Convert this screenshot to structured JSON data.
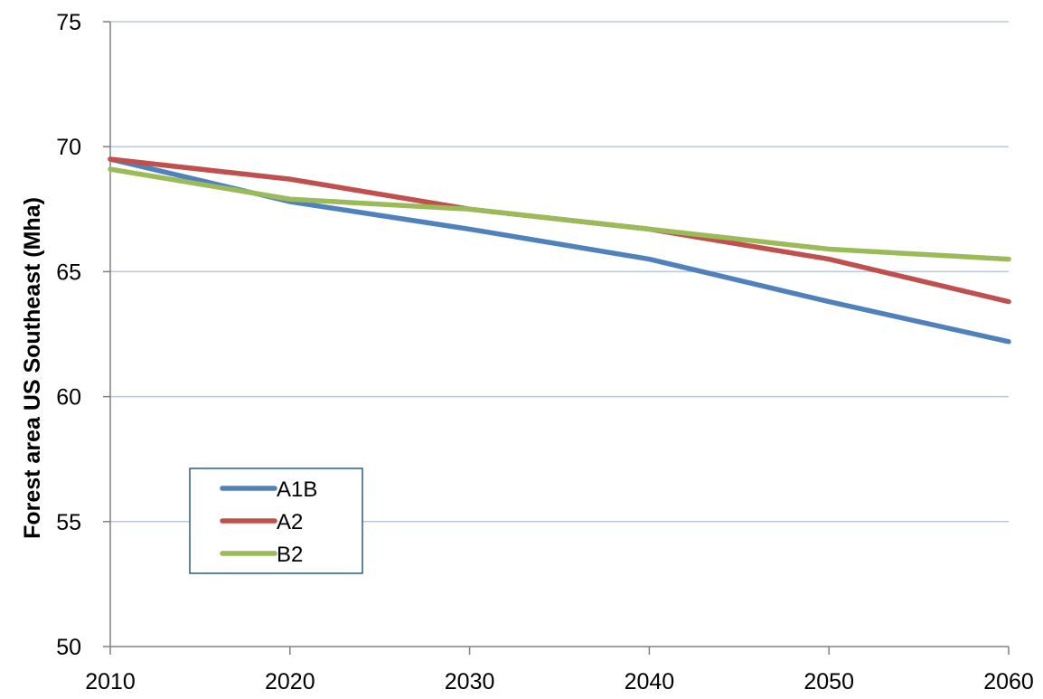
{
  "chart_data": {
    "type": "line",
    "title": "",
    "xlabel": "",
    "ylabel": "Forest area US Southeast (Mha)",
    "x": [
      2010,
      2020,
      2030,
      2040,
      2050,
      2060
    ],
    "xlim": [
      2010,
      2060
    ],
    "ylim": [
      50,
      75
    ],
    "x_ticks": [
      2010,
      2020,
      2030,
      2040,
      2050,
      2060
    ],
    "y_ticks": [
      50,
      55,
      60,
      65,
      70,
      75
    ],
    "grid": "horizontal",
    "legend_position": "bottom-left",
    "series": [
      {
        "name": "A1B",
        "color": "#4f81bd",
        "values": [
          69.5,
          67.8,
          66.7,
          65.5,
          63.8,
          62.2
        ]
      },
      {
        "name": "A2",
        "color": "#c0504d",
        "values": [
          69.5,
          68.7,
          67.5,
          66.7,
          65.5,
          63.8
        ]
      },
      {
        "name": "B2",
        "color": "#9bbb59",
        "values": [
          69.1,
          67.9,
          67.5,
          66.7,
          65.9,
          65.5
        ]
      }
    ],
    "colors": {
      "grid": "#b9c8dc",
      "axis": "#808080",
      "legend_border": "#2c5a8c"
    }
  }
}
